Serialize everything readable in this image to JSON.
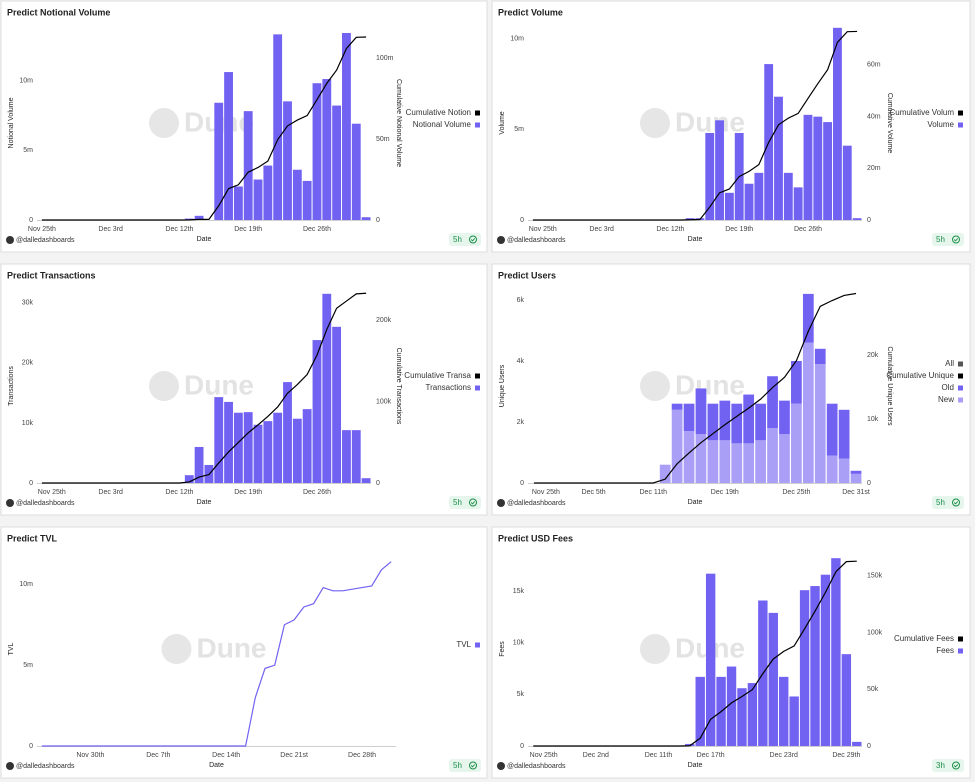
{
  "chart_data": [
    {
      "type": "bar",
      "title": "Predict Notional Volume",
      "x_title": "Date",
      "y_title": "Notional Volume",
      "y2_title": "Cumulative Notional Volume",
      "categories": [
        "Nov 25th",
        null,
        null,
        null,
        null,
        null,
        null,
        "Dec 3rd",
        null,
        null,
        null,
        null,
        null,
        null,
        "Dec 12th",
        null,
        null,
        null,
        null,
        null,
        null,
        "Dec 19th",
        null,
        null,
        null,
        null,
        null,
        null,
        "Dec 26th",
        null,
        null,
        null,
        null,
        null
      ],
      "ylim": [
        0,
        13.9
      ],
      "yticks": [
        0,
        {
          "value": 5,
          "label": "5m"
        },
        {
          "value": 10,
          "label": "10m"
        }
      ],
      "y2lim": [
        0,
        120
      ],
      "y2ticks": [
        0,
        {
          "value": 50,
          "label": "50m"
        },
        {
          "value": 100,
          "label": "100m"
        }
      ],
      "series": [
        {
          "name": "Cumulative Notion",
          "color": "#000000",
          "type": "line",
          "axis": "y2",
          "values": [
            0,
            0,
            0,
            0,
            0,
            0,
            0,
            0,
            0,
            0,
            0,
            0,
            0,
            0,
            0,
            0.1,
            0.4,
            0.4,
            8.8,
            19.4,
            21.8,
            29.6,
            32.5,
            36.4,
            49.7,
            58.2,
            61.8,
            64.6,
            74.4,
            84.5,
            92.7,
            106.1,
            113.0,
            113.2
          ]
        },
        {
          "name": "Notional Volume",
          "color": "#7262f2",
          "values": [
            0,
            0,
            0,
            0,
            0,
            0,
            0,
            0,
            0,
            0,
            0,
            0,
            0,
            0,
            0,
            0.1,
            0.3,
            0,
            8.4,
            10.6,
            2.4,
            7.8,
            2.9,
            3.9,
            13.3,
            8.5,
            3.6,
            2.8,
            9.8,
            10.1,
            8.2,
            13.4,
            6.9,
            0.2
          ]
        }
      ],
      "grid": false,
      "legend": "right",
      "watermark": "Dune",
      "author": "@dalledashboards",
      "updated": "5h"
    },
    {
      "type": "bar",
      "title": "Predict Volume",
      "x_title": "Date",
      "y_title": "Volume",
      "y2_title": "Cumulative Volume",
      "categories": [
        null,
        "Nov 25th",
        null,
        null,
        null,
        null,
        null,
        "Dec 3rd",
        null,
        null,
        null,
        null,
        null,
        null,
        "Dec 12th",
        null,
        null,
        null,
        null,
        null,
        null,
        "Dec 19th",
        null,
        null,
        null,
        null,
        null,
        null,
        "Dec 26th",
        null,
        null,
        null,
        null,
        null
      ],
      "ylim": [
        0,
        10.7
      ],
      "yticks": [
        0,
        {
          "value": 5,
          "label": "5m"
        },
        {
          "value": 10,
          "label": "10m"
        }
      ],
      "y2lim": [
        0,
        75
      ],
      "y2ticks": [
        0,
        {
          "value": 20,
          "label": "20m"
        },
        {
          "value": 40,
          "label": "40m"
        },
        {
          "value": 60,
          "label": "60m"
        }
      ],
      "series": [
        {
          "name": "Cumulative Volum",
          "color": "#000000",
          "type": "line",
          "axis": "y2",
          "values": [
            0,
            0,
            0,
            0,
            0,
            0,
            0,
            0,
            0,
            0,
            0,
            0,
            0,
            0,
            0,
            0,
            0.1,
            0.2,
            5.0,
            10.5,
            12.0,
            16.8,
            18.8,
            21.4,
            30.0,
            36.8,
            39.4,
            41.2,
            47.0,
            52.7,
            58.1,
            68.7,
            72.8,
            72.9
          ]
        },
        {
          "name": "Volume",
          "color": "#7262f2",
          "values": [
            0,
            0,
            0,
            0,
            0,
            0,
            0,
            0,
            0,
            0,
            0,
            0,
            0,
            0,
            0,
            0,
            0.1,
            0.1,
            4.8,
            5.5,
            1.5,
            4.8,
            2.0,
            2.6,
            8.6,
            6.8,
            2.6,
            1.8,
            5.8,
            5.7,
            5.4,
            10.6,
            4.1,
            0.1
          ]
        }
      ],
      "grid": false,
      "legend": "right",
      "watermark": "Dune",
      "author": "@dalledashboards",
      "updated": "5h"
    },
    {
      "type": "bar",
      "title": "Predict Transactions",
      "x_title": "Date",
      "y_title": "Transactions",
      "y2_title": "Cumulative Transactions",
      "categories": [
        null,
        "Nov 25th",
        null,
        null,
        null,
        null,
        null,
        "Dec 3rd",
        null,
        null,
        null,
        null,
        null,
        null,
        "Dec 12th",
        null,
        null,
        null,
        null,
        null,
        null,
        "Dec 19th",
        null,
        null,
        null,
        null,
        null,
        null,
        "Dec 26th",
        null,
        null,
        null,
        null,
        null
      ],
      "ylim": [
        0,
        32.3
      ],
      "yticks": [
        0,
        {
          "value": 10,
          "label": "10k"
        },
        {
          "value": 20,
          "label": "20k"
        },
        {
          "value": 30,
          "label": "30k"
        }
      ],
      "y2lim": [
        0,
        238
      ],
      "y2ticks": [
        0,
        {
          "value": 100,
          "label": "100k"
        },
        {
          "value": 200,
          "label": "200k"
        }
      ],
      "series": [
        {
          "name": "Cumulative Transa",
          "color": "#000000",
          "type": "line",
          "axis": "y2",
          "values": [
            0,
            0,
            0,
            0,
            0,
            0,
            0,
            0,
            0,
            0,
            0,
            0,
            0,
            0,
            0,
            1.3,
            7.3,
            10.3,
            24.6,
            38.1,
            49.8,
            61.6,
            71.3,
            81.6,
            93.3,
            110.1,
            120.8,
            133.1,
            156.9,
            188.4,
            214.4,
            223.2,
            232.0,
            232.8
          ]
        },
        {
          "name": "Transactions",
          "color": "#7262f2",
          "values": [
            0,
            0,
            0,
            0,
            0,
            0,
            0,
            0,
            0,
            0,
            0,
            0,
            0,
            0,
            0,
            1.3,
            6.0,
            3.0,
            14.3,
            13.5,
            11.7,
            11.8,
            9.7,
            10.3,
            11.7,
            16.8,
            10.7,
            12.3,
            23.8,
            31.5,
            26.0,
            8.8,
            8.8,
            0.8
          ]
        }
      ],
      "grid": false,
      "legend": "right",
      "watermark": "Dune",
      "author": "@dalledashboards",
      "updated": "5h"
    },
    {
      "type": "stacked_bar",
      "title": "Predict Users",
      "x_title": "Date",
      "y_title": "Unique Users",
      "y2_title": "Cumulative Unique Users",
      "categories": [
        null,
        "Nov 25th",
        null,
        null,
        null,
        "Dec 5th",
        null,
        null,
        null,
        null,
        "Dec 11th",
        null,
        null,
        null,
        null,
        null,
        "Dec 19th",
        null,
        null,
        null,
        null,
        null,
        "Dec 25th",
        null,
        null,
        null,
        null,
        "Dec 31st"
      ],
      "ylim": [
        0,
        6.36
      ],
      "yticks": [
        0,
        {
          "value": 2,
          "label": "2k"
        },
        {
          "value": 4,
          "label": "4k"
        },
        {
          "value": 6,
          "label": "6k"
        }
      ],
      "y2lim": [
        0,
        30.3
      ],
      "y2ticks": [
        0,
        {
          "value": 10,
          "label": "10k"
        },
        {
          "value": 20,
          "label": "20k"
        }
      ],
      "series": [
        {
          "name": "All",
          "color": "#555555",
          "values": [
            null,
            null,
            null,
            null,
            null,
            null,
            null,
            null,
            null,
            null,
            null,
            null,
            null,
            null,
            null,
            null,
            null,
            null,
            null,
            null,
            null,
            null,
            null,
            null,
            null,
            null,
            null,
            null
          ]
        },
        {
          "name": "Cumulative Unique",
          "color": "#000000",
          "type": "line",
          "axis": "y2",
          "values": [
            0,
            0,
            0,
            0,
            0,
            0,
            0,
            0,
            0,
            0,
            0,
            0.6,
            3.0,
            4.7,
            6.3,
            7.7,
            9.1,
            10.4,
            11.7,
            13.1,
            14.9,
            16.5,
            19.1,
            23.7,
            27.6,
            28.5,
            29.3,
            29.6
          ]
        },
        {
          "name": "Old",
          "color": "#7262f2",
          "values": [
            0,
            0,
            0,
            0,
            0,
            0,
            0,
            0,
            0,
            0,
            0,
            0,
            0.2,
            0.9,
            1.5,
            1.2,
            1.3,
            1.3,
            1.6,
            1.2,
            1.7,
            1.1,
            1.4,
            1.6,
            0.5,
            1.7,
            1.6,
            0.1
          ]
        },
        {
          "name": "New",
          "color": "#a99ff7",
          "values": [
            0,
            0,
            0,
            0,
            0,
            0,
            0,
            0,
            0,
            0,
            0,
            0.6,
            2.4,
            1.7,
            1.6,
            1.4,
            1.4,
            1.3,
            1.3,
            1.4,
            1.8,
            1.6,
            2.6,
            4.6,
            3.9,
            0.9,
            0.8,
            0.3
          ]
        }
      ],
      "stack_order": [
        "New",
        "Old"
      ],
      "grid": false,
      "legend": "right",
      "watermark": "Dune",
      "author": "@dalledashboards",
      "updated": "5h"
    },
    {
      "type": "line",
      "title": "Predict TVL",
      "x_title": "Date",
      "y_title": "TVL",
      "categories": [
        null,
        null,
        null,
        null,
        null,
        "Nov 30th",
        null,
        null,
        null,
        null,
        null,
        null,
        "Dec 7th",
        null,
        null,
        null,
        null,
        null,
        null,
        "Dec 14th",
        null,
        null,
        null,
        null,
        null,
        null,
        "Dec 21st",
        null,
        null,
        null,
        null,
        null,
        null,
        "Dec 28th",
        null,
        null,
        null
      ],
      "ylim": [
        0,
        12
      ],
      "yticks": [
        0,
        {
          "value": 5,
          "label": "5m"
        },
        {
          "value": 10,
          "label": "10m"
        }
      ],
      "series": [
        {
          "name": "TVL",
          "color": "#7262f2",
          "values": [
            0,
            0,
            0,
            0,
            0,
            0,
            0,
            0,
            0,
            0,
            0,
            0,
            0,
            0,
            0,
            0,
            0,
            0,
            0,
            0,
            0,
            0,
            3.0,
            4.8,
            5.0,
            7.5,
            7.8,
            8.6,
            8.8,
            9.8,
            9.6,
            9.6,
            9.7,
            9.8,
            9.9,
            10.9,
            11.4
          ]
        }
      ],
      "grid": false,
      "legend": "right",
      "watermark": "Dune",
      "author": "@dalledashboards",
      "updated": "5h"
    },
    {
      "type": "bar",
      "title": "Predict USD Fees",
      "x_title": "Date",
      "y_title": "Fees",
      "categories": [
        null,
        "Nov 25th",
        null,
        null,
        null,
        null,
        "Dec 2nd",
        null,
        null,
        null,
        null,
        null,
        "Dec 11th",
        null,
        null,
        null,
        null,
        "Dec 17th",
        null,
        null,
        null,
        null,
        null,
        null,
        "Dec 23rd",
        null,
        null,
        null,
        null,
        null,
        "Dec 29th",
        null
      ],
      "ylim": [
        0,
        18.8
      ],
      "yticks": [
        0,
        {
          "value": 5,
          "label": "5k"
        },
        {
          "value": 10,
          "label": "10k"
        },
        {
          "value": 15,
          "label": "15k"
        }
      ],
      "y2lim": [
        0,
        171
      ],
      "y2ticks": [
        0,
        {
          "value": 50,
          "label": "50k"
        },
        {
          "value": 100,
          "label": "100k"
        },
        {
          "value": 150,
          "label": "150k"
        }
      ],
      "series": [
        {
          "name": "Cumulative Fees",
          "color": "#000000",
          "type": "line",
          "axis": "y2",
          "values": [
            0,
            0,
            0,
            0,
            0,
            0,
            0,
            0,
            0,
            0,
            0,
            0,
            0,
            0,
            0,
            0.2,
            6.9,
            23.6,
            30.3,
            38.0,
            43.6,
            49.7,
            63.8,
            76.7,
            83.4,
            88.2,
            103.3,
            118.8,
            135.4,
            153.6,
            162.5,
            162.9
          ]
        },
        {
          "name": "Fees",
          "color": "#7262f2",
          "values": [
            0,
            0,
            0,
            0,
            0,
            0,
            0,
            0,
            0,
            0,
            0,
            0,
            0,
            0,
            0,
            0.2,
            6.7,
            16.7,
            6.7,
            7.7,
            5.6,
            6.1,
            14.1,
            12.9,
            6.7,
            4.8,
            15.1,
            15.5,
            16.6,
            18.2,
            8.9,
            0.4
          ]
        }
      ],
      "grid": false,
      "legend": "right",
      "watermark": "Dune",
      "author": "@dalledashboards",
      "updated": "3h"
    }
  ]
}
